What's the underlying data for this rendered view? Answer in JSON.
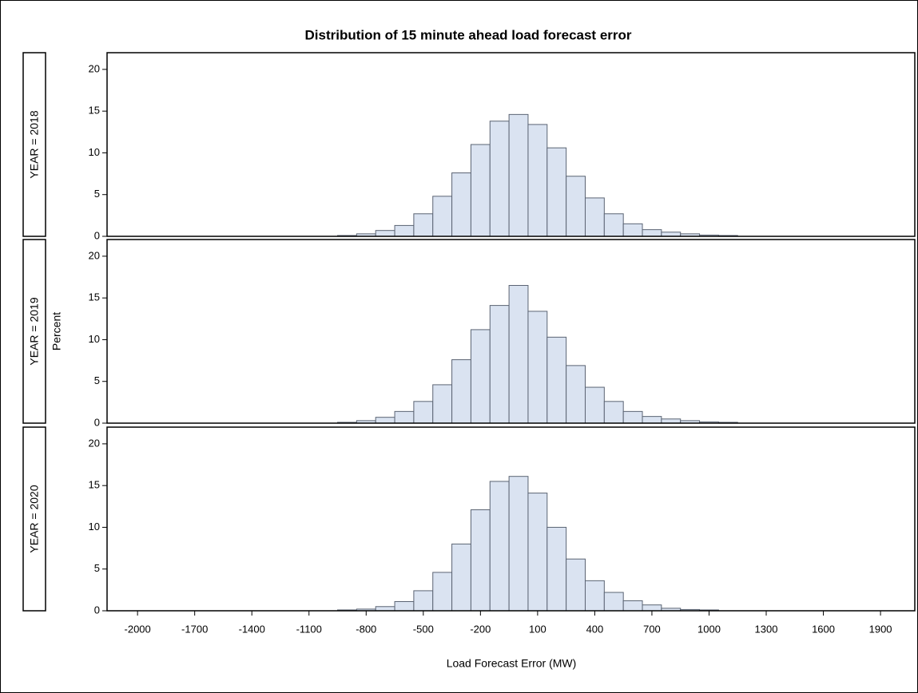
{
  "chart_data": {
    "type": "histogram",
    "title": "Distribution of 15 minute ahead load forecast error",
    "xlabel": "Load Forecast Error (MW)",
    "ylabel": "Percent",
    "color": "#dae3f1",
    "xlim": [
      -2160,
      2080
    ],
    "xticks": [
      -2000,
      -1700,
      -1400,
      -1100,
      -800,
      -500,
      -200,
      100,
      400,
      700,
      1000,
      1300,
      1600,
      1900
    ],
    "ylim": [
      0,
      22
    ],
    "yticks": [
      0,
      5,
      10,
      15,
      20
    ],
    "panels": [
      {
        "label": "YEAR = 2018",
        "bins": [
          -950,
          -850,
          -750,
          -650,
          -550,
          -450,
          -350,
          -250,
          -150,
          -50,
          50,
          150,
          250,
          350,
          450,
          550,
          650,
          750,
          850,
          950,
          1050,
          1150
        ],
        "values": [
          0.1,
          0.3,
          0.7,
          1.3,
          2.7,
          4.8,
          7.6,
          11.0,
          13.8,
          14.6,
          13.4,
          10.6,
          7.2,
          4.6,
          2.7,
          1.5,
          0.8,
          0.5,
          0.3,
          0.15,
          0.1
        ]
      },
      {
        "label": "YEAR = 2019",
        "bins": [
          -950,
          -850,
          -750,
          -650,
          -550,
          -450,
          -350,
          -250,
          -150,
          -50,
          50,
          150,
          250,
          350,
          450,
          550,
          650,
          750,
          850,
          950,
          1050,
          1150
        ],
        "values": [
          0.1,
          0.3,
          0.7,
          1.4,
          2.6,
          4.6,
          7.6,
          11.2,
          14.1,
          16.5,
          13.4,
          10.3,
          6.9,
          4.3,
          2.6,
          1.4,
          0.8,
          0.5,
          0.3,
          0.15,
          0.1
        ]
      },
      {
        "label": "YEAR = 2020",
        "bins": [
          -950,
          -850,
          -750,
          -650,
          -550,
          -450,
          -350,
          -250,
          -150,
          -50,
          50,
          150,
          250,
          350,
          450,
          550,
          650,
          750,
          850,
          950,
          1050
        ],
        "values": [
          0.1,
          0.2,
          0.5,
          1.1,
          2.4,
          4.6,
          8.0,
          12.1,
          15.5,
          16.1,
          14.1,
          10.0,
          6.2,
          3.6,
          2.2,
          1.2,
          0.7,
          0.3,
          0.15,
          0.1
        ]
      }
    ]
  }
}
